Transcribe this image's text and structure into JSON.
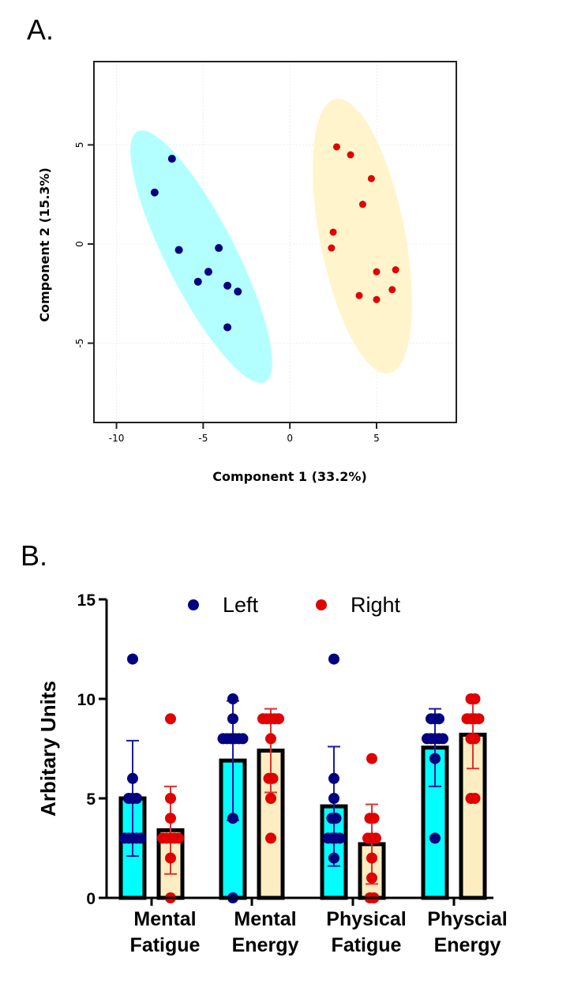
{
  "chart_data": [
    {
      "panel_label": "A.",
      "type": "scatter",
      "xlabel": "Component 1 (33.2%)",
      "ylabel": "Component 2 (15.3%)",
      "xlim": [
        -11.3,
        9.6
      ],
      "ylim": [
        -9.0,
        9.2
      ],
      "xticks": [
        -10,
        -5,
        0,
        5
      ],
      "yticks": [
        5,
        0,
        -5
      ],
      "grid": true,
      "series": [
        {
          "name": "Left",
          "color": "#000080",
          "ellipse_color": "#b3ffff",
          "points": [
            [
              -6.8,
              4.3
            ],
            [
              -7.8,
              2.6
            ],
            [
              -6.4,
              -0.3
            ],
            [
              -4.1,
              -0.2
            ],
            [
              -4.7,
              -1.4
            ],
            [
              -5.3,
              -1.9
            ],
            [
              -3.6,
              -2.1
            ],
            [
              -3.0,
              -2.4
            ],
            [
              -3.6,
              -4.2
            ]
          ]
        },
        {
          "name": "Right",
          "color": "#e00000",
          "ellipse_color": "#fff4cc",
          "points": [
            [
              2.7,
              4.9
            ],
            [
              3.5,
              4.5
            ],
            [
              4.7,
              3.3
            ],
            [
              4.2,
              2.0
            ],
            [
              2.5,
              0.6
            ],
            [
              2.4,
              -0.2
            ],
            [
              5.0,
              -1.4
            ],
            [
              6.1,
              -1.3
            ],
            [
              5.9,
              -2.3
            ],
            [
              4.0,
              -2.6
            ],
            [
              5.0,
              -2.8
            ]
          ]
        }
      ]
    },
    {
      "panel_label": "B.",
      "type": "bar",
      "ylabel": "Arbitary  Units",
      "ylim": [
        0,
        15
      ],
      "yticks": [
        0,
        5,
        10,
        15
      ],
      "categories": [
        [
          "Mental",
          "Fatigue"
        ],
        [
          "Mental",
          "Energy"
        ],
        [
          "Physical",
          "Fatigue"
        ],
        [
          "Physcial",
          "Energy"
        ]
      ],
      "legend": {
        "placement": "top-center"
      },
      "series": [
        {
          "name": "Left",
          "bar_color": "#00ffff",
          "dot_color": "#000080",
          "error_color": "#1a1aa0",
          "means": [
            5.0,
            6.9,
            4.6,
            7.55
          ],
          "sd": [
            2.9,
            3.0,
            3.0,
            1.95
          ],
          "points": [
            [
              12,
              6,
              5,
              5,
              5,
              3,
              3,
              3,
              3,
              3
            ],
            [
              10,
              9,
              8,
              8,
              8,
              8,
              8,
              8,
              4,
              0
            ],
            [
              12,
              6,
              5,
              4,
              4,
              3,
              3,
              3,
              3,
              2
            ],
            [
              9,
              9,
              9,
              8,
              8,
              8,
              8,
              8,
              7,
              3
            ]
          ]
        },
        {
          "name": "Right",
          "bar_color": "#ffedc2",
          "dot_color": "#e00000",
          "error_color": "#e03030",
          "means": [
            3.4,
            7.4,
            2.7,
            8.2
          ],
          "sd": [
            2.2,
            2.1,
            2.0,
            1.7
          ],
          "points": [
            [
              9,
              5,
              4,
              3,
              3,
              3,
              3,
              3,
              2,
              0
            ],
            [
              9,
              9,
              9,
              9,
              9,
              8,
              6,
              6,
              5,
              3
            ],
            [
              7,
              4,
              4,
              3,
              3,
              3,
              2,
              1,
              0,
              0
            ],
            [
              10,
              10,
              9,
              9,
              9,
              9,
              8,
              8,
              5,
              5
            ]
          ]
        }
      ]
    }
  ]
}
